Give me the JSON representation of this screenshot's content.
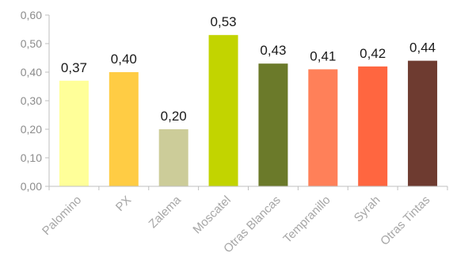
{
  "chart_data": {
    "type": "bar",
    "categories": [
      "Palomino",
      "PX",
      "Zalema",
      "Moscatel",
      "Otras Blancas",
      "Tempranillo",
      "Syrah",
      "Otras Tintas"
    ],
    "values": [
      0.37,
      0.4,
      0.2,
      0.53,
      0.43,
      0.41,
      0.42,
      0.44
    ],
    "data_labels": [
      "0,37",
      "0,40",
      "0,20",
      "0,53",
      "0,43",
      "0,41",
      "0,42",
      "0,44"
    ],
    "colors": [
      "#ffff99",
      "#ffcc44",
      "#cccc99",
      "#c2d400",
      "#6b7a2a",
      "#ff8059",
      "#ff6640",
      "#6e3b30"
    ],
    "title": "",
    "xlabel": "",
    "ylabel": "",
    "ylim": [
      0,
      0.6
    ],
    "yticks": [
      0,
      0.1,
      0.2,
      0.3,
      0.4,
      0.5,
      0.6
    ],
    "ytick_labels": [
      "0,00",
      "0,10",
      "0,20",
      "0,30",
      "0,40",
      "0,50",
      "0,60"
    ],
    "grid": false,
    "legend": "none",
    "axis_color": "#bfbfbf"
  }
}
